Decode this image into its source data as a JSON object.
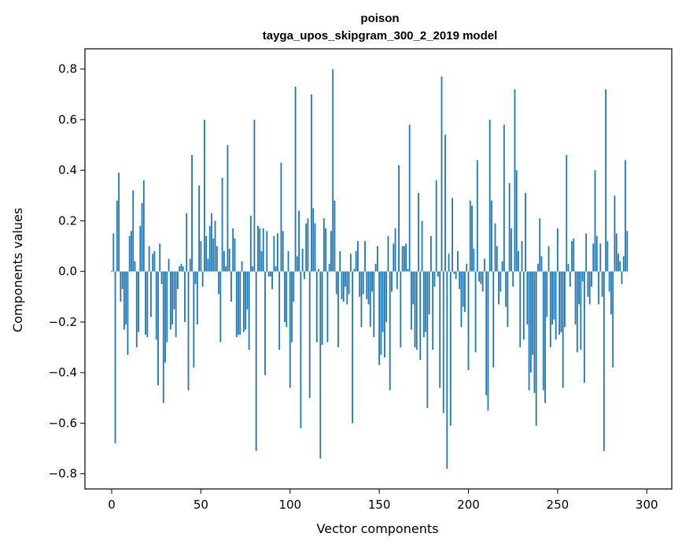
{
  "chart_data": {
    "type": "bar",
    "title": "poison",
    "subtitle": "tayga_upos_skipgram_300_2_2019 model",
    "xlabel": "Vector components",
    "ylabel": "Components values",
    "xlim": [
      -15,
      314
    ],
    "ylim": [
      -0.86,
      0.88
    ],
    "xticks": [
      0,
      50,
      100,
      150,
      200,
      250,
      300
    ],
    "yticks": [
      -0.8,
      -0.6,
      -0.4,
      -0.2,
      0.0,
      0.2,
      0.4,
      0.6,
      0.8
    ],
    "ytick_labels": [
      "−0.8",
      "−0.6",
      "−0.4",
      "−0.2",
      "0.0",
      "0.2",
      "0.4",
      "0.6",
      "0.8"
    ],
    "bar_color": "#1f77b4",
    "values": [
      0.003,
      0.15,
      -0.68,
      0.28,
      0.39,
      -0.12,
      -0.07,
      -0.23,
      -0.21,
      -0.33,
      0.14,
      0.16,
      0.32,
      0.04,
      -0.3,
      -0.24,
      0.18,
      0.27,
      0.36,
      -0.25,
      -0.26,
      0.1,
      -0.18,
      0.07,
      0.08,
      -0.27,
      -0.45,
      0.11,
      -0.05,
      -0.52,
      -0.36,
      -0.28,
      0.05,
      -0.23,
      -0.21,
      -0.15,
      -0.26,
      -0.07,
      0.02,
      0.03,
      0.02,
      -0.2,
      0.23,
      -0.47,
      0.05,
      0.46,
      -0.38,
      -0.05,
      -0.21,
      0.34,
      0.12,
      -0.06,
      0.6,
      0.14,
      0.05,
      0.18,
      0.23,
      0.13,
      0.2,
      0.1,
      -0.09,
      -0.28,
      0.37,
      0.08,
      0.02,
      0.5,
      0.09,
      -0.12,
      0.17,
      0.13,
      -0.26,
      -0.25,
      -0.25,
      0.04,
      -0.24,
      -0.23,
      -0.15,
      -0.31,
      0.22,
      0.02,
      0.6,
      -0.71,
      0.18,
      0.17,
      0.08,
      0.17,
      -0.41,
      0.16,
      -0.02,
      -0.02,
      -0.07,
      0.14,
      0.02,
      0.15,
      -0.31,
      0.43,
      0.16,
      -0.2,
      -0.22,
      0.08,
      -0.46,
      -0.28,
      -0.12,
      0.73,
      0.06,
      0.24,
      -0.62,
      0.09,
      -0.03,
      0.19,
      0.21,
      -0.5,
      0.7,
      0.25,
      0.19,
      -0.28,
      0.01,
      -0.74,
      -0.29,
      0.21,
      0.17,
      -0.28,
      0.03,
      0.16,
      0.8,
      0.28,
      -0.09,
      -0.3,
      0.08,
      -0.11,
      -0.12,
      -0.06,
      -0.13,
      -0.09,
      0.07,
      -0.6,
      0.01,
      0.08,
      0.12,
      -0.1,
      -0.22,
      -0.09,
      0.12,
      -0.11,
      -0.13,
      -0.22,
      -0.08,
      -0.26,
      0.03,
      0.1,
      -0.37,
      -0.33,
      -0.24,
      -0.34,
      -0.2,
      0.14,
      -0.47,
      -0.08,
      0.11,
      0.17,
      -0.07,
      0.42,
      -0.3,
      0.1,
      0.1,
      0.11,
      0.01,
      0.58,
      -0.23,
      -0.13,
      -0.3,
      -0.31,
      0.31,
      -0.35,
      0.2,
      -0.26,
      -0.24,
      -0.54,
      -0.17,
      0.14,
      -0.31,
      -0.06,
      0.36,
      -0.02,
      -0.46,
      0.77,
      -0.56,
      0.54,
      -0.78,
      0.07,
      -0.61,
      0.29,
      -0.01,
      -0.03,
      0.08,
      -0.07,
      -0.22,
      -0.14,
      -0.16,
      0.03,
      -0.39,
      0.28,
      0.26,
      0.09,
      -0.32,
      0.44,
      -0.04,
      -0.05,
      -0.08,
      0.05,
      -0.49,
      -0.55,
      0.6,
      0.28,
      -0.38,
      0.19,
      0.1,
      -0.13,
      -0.08,
      0.04,
      0.58,
      -0.14,
      -0.22,
      0.35,
      0.17,
      -0.06,
      0.72,
      0.4,
      0.08,
      -0.3,
      0.12,
      -0.27,
      0.31,
      -0.21,
      -0.47,
      -0.4,
      -0.33,
      -0.48,
      -0.61,
      0.03,
      0.21,
      0.06,
      -0.47,
      -0.52,
      -0.18,
      0.1,
      -0.3,
      -0.21,
      -0.19,
      -0.27,
      0.17,
      -0.25,
      -0.24,
      -0.46,
      -0.22,
      0.46,
      0.03,
      -0.06,
      0.12,
      0.13,
      -0.21,
      -0.32,
      -0.13,
      -0.31,
      -0.04,
      -0.44,
      0.15,
      -0.1,
      -0.13,
      -0.06,
      0.11,
      0.4,
      0.14,
      -0.13,
      0.11,
      -0.1,
      -0.71,
      0.72,
      0.12,
      -0.08,
      -0.17,
      -0.38,
      0.3,
      0.15,
      0.07,
      0.04,
      -0.05,
      0.06,
      0.44,
      0.16
    ]
  }
}
